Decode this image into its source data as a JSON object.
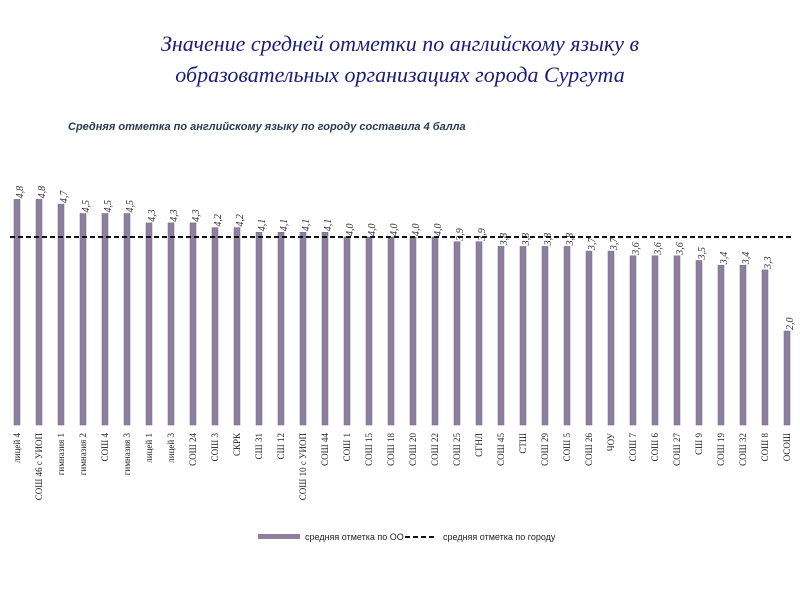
{
  "chart_data": {
    "type": "bar",
    "title": "Значение средней отметки по английскому языку в образовательных организациях города Сургута",
    "subtitle": "Средняя отметка по английскому языку по городу составила 4 балла",
    "categories": [
      "лицей 4",
      "СОШ 46 с УИОП",
      "гимназия 1",
      "гимназия 2",
      "СОШ 4",
      "гимназия 3",
      "лицей 1",
      "лицей 3",
      "СОШ 24",
      "СОШ 3",
      "СКРК",
      "СШ 31",
      "СШ 12",
      "СОШ 10 с УИОП",
      "СОШ 44",
      "СОШ 1",
      "СОШ 15",
      "СОШ 18",
      "СОШ 20",
      "СОШ 22",
      "СОШ 25",
      "СГНЛ",
      "СОШ 45",
      "СТШ",
      "СОШ 29",
      "СОШ 5",
      "СОШ 26",
      "ЧОУ",
      "СОШ 7",
      "СОШ 6",
      "СОШ 27",
      "СШ 9",
      "СОШ 19",
      "СОШ 32",
      "СОШ 8",
      "ОСОШ"
    ],
    "series": [
      {
        "name": "средняя отметка по ОО",
        "color": "#8c809e",
        "values": [
          4.8,
          4.8,
          4.7,
          4.5,
          4.5,
          4.5,
          4.3,
          4.3,
          4.3,
          4.2,
          4.2,
          4.1,
          4.1,
          4.1,
          4.1,
          4.0,
          4.0,
          4.0,
          4.0,
          4.0,
          3.9,
          3.9,
          3.8,
          3.8,
          3.8,
          3.8,
          3.7,
          3.7,
          3.6,
          3.6,
          3.6,
          3.5,
          3.4,
          3.4,
          3.3,
          2.0
        ],
        "value_labels": [
          "4,8",
          "4,8",
          "4,7",
          "4,5",
          "4,5",
          "4,5",
          "4,3",
          "4,3",
          "4,3",
          "4,2",
          "4,2",
          "4,1",
          "4,1",
          "4,1",
          "4,1",
          "4,0",
          "4,0",
          "4,0",
          "4,0",
          "4,0",
          "3,9",
          "3,9",
          "3,8",
          "3,8",
          "3,8",
          "3,8",
          "3,7",
          "3,7",
          "3,6",
          "3,6",
          "3,6",
          "3,5",
          "3,4",
          "3,4",
          "3,3",
          "2,0"
        ]
      }
    ],
    "reference": {
      "name": "средняя отметка по городу",
      "value": 4,
      "color": "#111111"
    },
    "ylim": [
      0,
      5
    ]
  }
}
